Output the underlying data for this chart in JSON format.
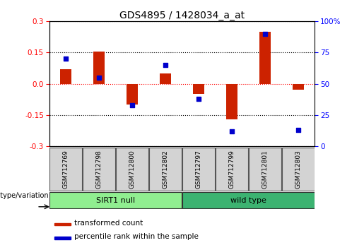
{
  "title": "GDS4895 / 1428034_a_at",
  "samples": [
    "GSM712769",
    "GSM712798",
    "GSM712800",
    "GSM712802",
    "GSM712797",
    "GSM712799",
    "GSM712801",
    "GSM712803"
  ],
  "bar_values": [
    0.07,
    0.155,
    -0.1,
    0.05,
    -0.05,
    -0.17,
    0.25,
    -0.03
  ],
  "percentile_values": [
    70,
    55,
    33,
    65,
    38,
    12,
    90,
    13
  ],
  "bar_color": "#cc2200",
  "dot_color": "#0000cc",
  "ylim_left": [
    -0.3,
    0.3
  ],
  "ylim_right": [
    0,
    100
  ],
  "yticks_left": [
    -0.3,
    -0.15,
    0.0,
    0.15,
    0.3
  ],
  "yticks_right": [
    0,
    25,
    50,
    75,
    100
  ],
  "ytick_labels_right": [
    "0",
    "25",
    "50",
    "75",
    "100%"
  ],
  "group1_label": "SIRT1 null",
  "group2_label": "wild type",
  "group1_indices": [
    0,
    1,
    2,
    3
  ],
  "group2_indices": [
    4,
    5,
    6,
    7
  ],
  "group1_color": "#90ee90",
  "group2_color": "#3cb371",
  "genotype_label": "genotype/variation",
  "legend_bar_label": "transformed count",
  "legend_dot_label": "percentile rank within the sample",
  "bar_width": 0.35,
  "title_fontsize": 10,
  "tick_fontsize": 7.5,
  "label_fontsize": 7.5,
  "bg_color": "#ffffff"
}
